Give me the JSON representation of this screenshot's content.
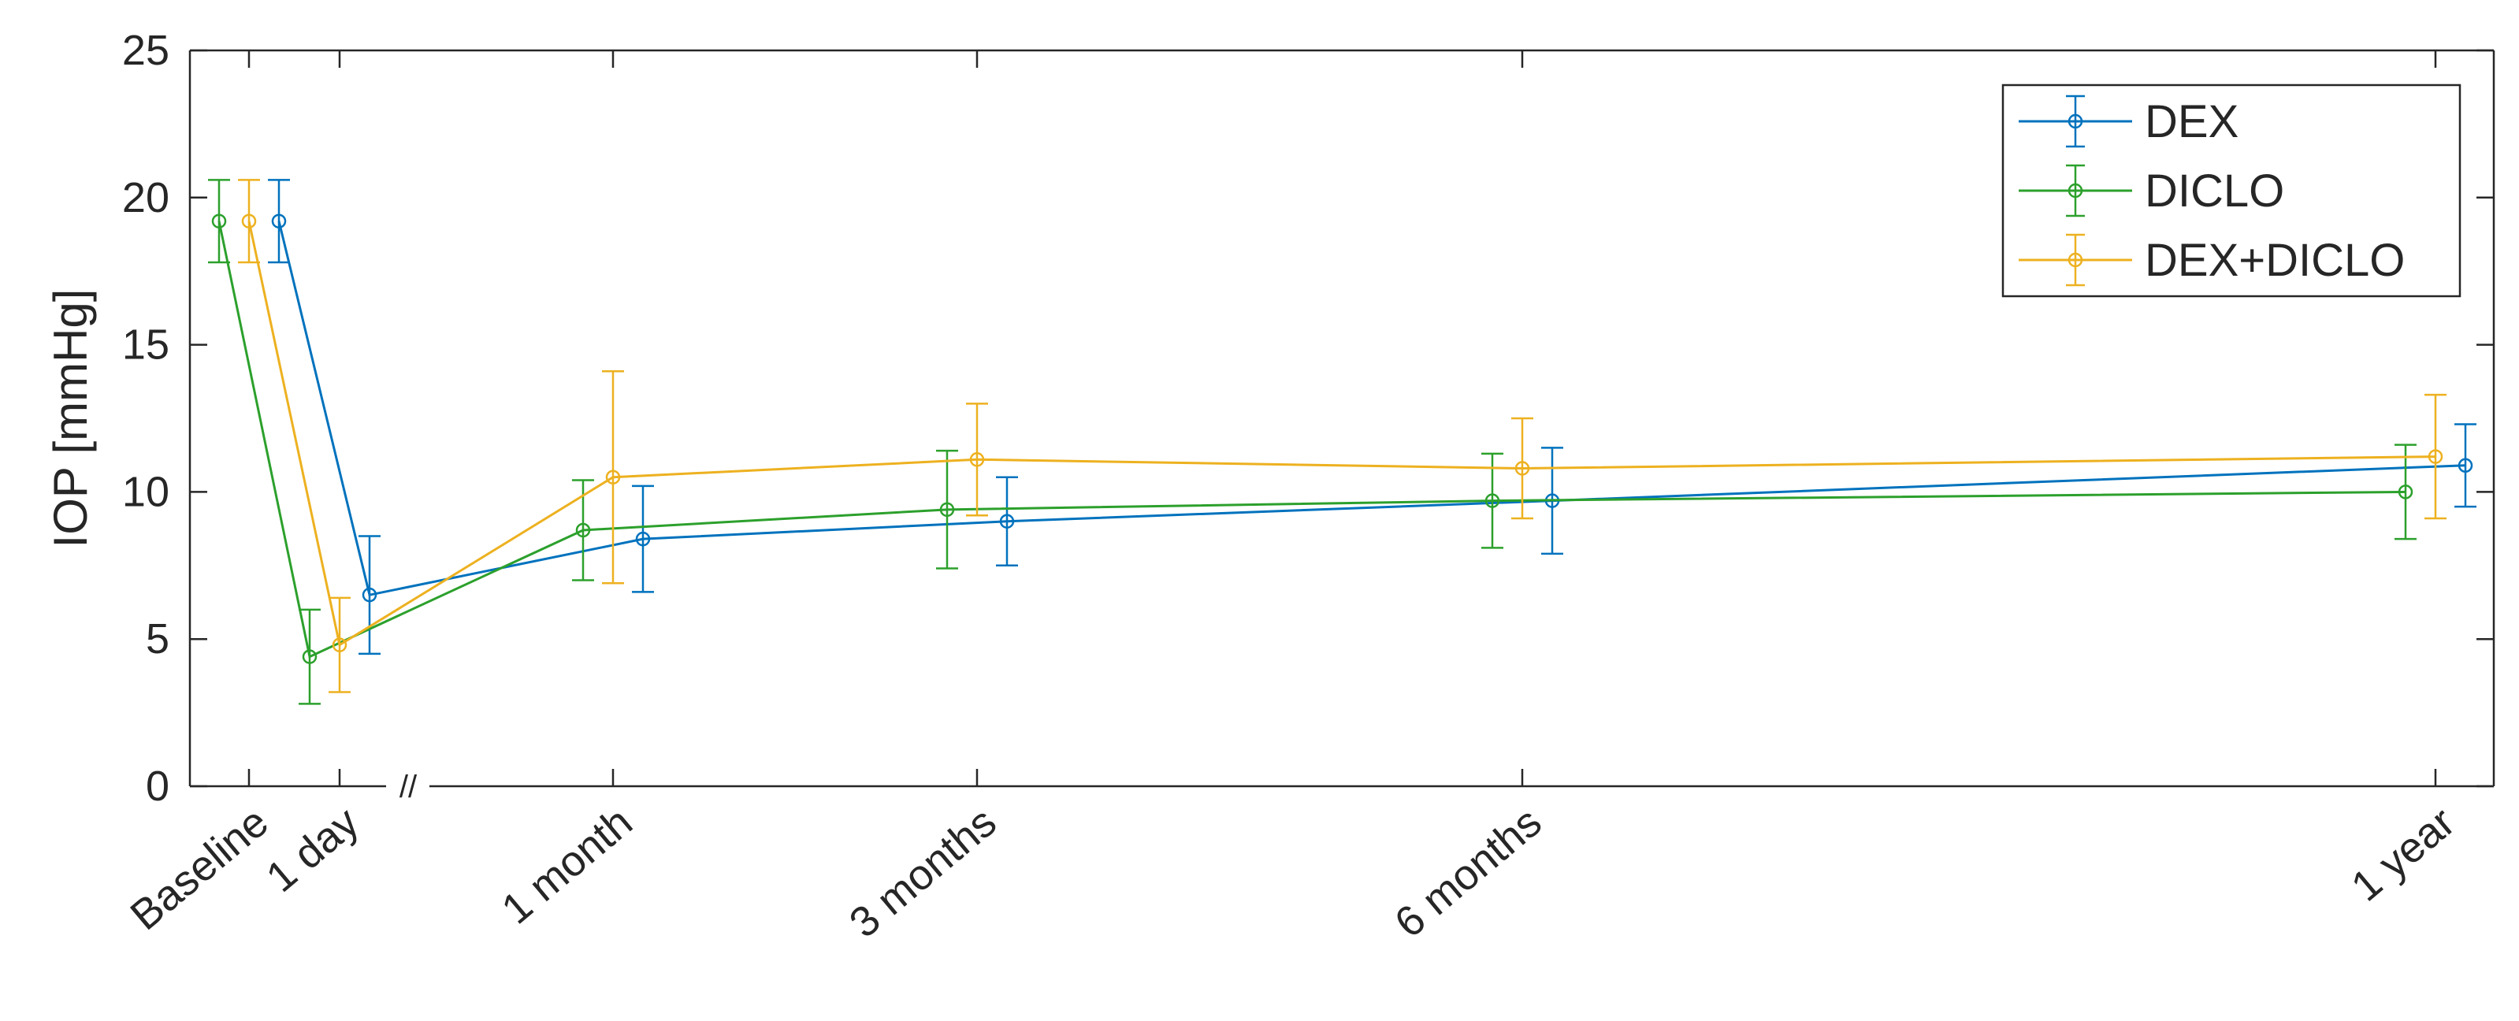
{
  "chart_data": {
    "type": "line",
    "ylabel": "IOP [mmHg]",
    "ylim": [
      0,
      25
    ],
    "yticks": [
      0,
      5,
      10,
      15,
      20,
      25
    ],
    "categories": [
      "Baseline",
      "1 day",
      "1 month",
      "3 months",
      "6 months",
      "1 year"
    ],
    "axis_break_mark": "//",
    "grid": false,
    "legend_position": "top-right",
    "series": [
      {
        "name": "DEX",
        "color": "#0072BD",
        "values": [
          19.2,
          6.5,
          8.4,
          9.0,
          9.7,
          10.9
        ],
        "errors": [
          1.4,
          2.0,
          1.8,
          1.5,
          1.8,
          1.4
        ]
      },
      {
        "name": "DICLO",
        "color": "#2CA02C",
        "values": [
          19.2,
          4.4,
          8.7,
          9.4,
          9.7,
          10.0
        ],
        "errors": [
          1.4,
          1.6,
          1.7,
          2.0,
          1.6,
          1.6
        ]
      },
      {
        "name": "DEX+DICLO",
        "color": "#EDB120",
        "values": [
          19.2,
          4.8,
          10.5,
          11.1,
          10.8,
          11.2
        ],
        "errors": [
          1.4,
          1.6,
          3.6,
          1.9,
          1.7,
          2.1
        ]
      }
    ]
  }
}
